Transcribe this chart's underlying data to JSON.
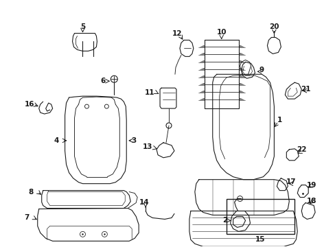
{
  "background_color": "#ffffff",
  "figsize": [
    4.89,
    3.6
  ],
  "dpi": 100,
  "lw": 0.8
}
